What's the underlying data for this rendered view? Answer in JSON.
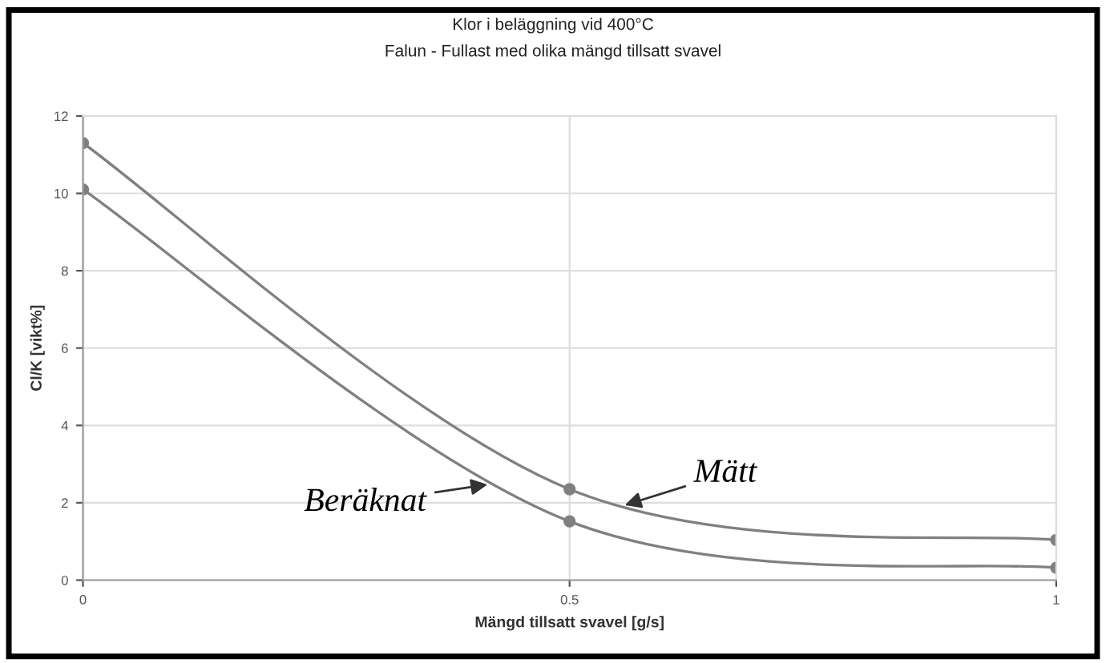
{
  "chart_data": {
    "type": "line",
    "title": "Klor i beläggning vid 400°C",
    "subtitle": "Falun - Fullast med olika mängd tillsatt svavel",
    "xlabel": "Mängd tillsatt svavel [g/s]",
    "ylabel": "Cl/K [vikt%]",
    "x": [
      0,
      0.5,
      1
    ],
    "series": [
      {
        "name": "Mätt",
        "color": "#808080",
        "values": [
          11.3,
          2.35,
          1.04
        ]
      },
      {
        "name": "Beräknat",
        "color": "#808080",
        "values": [
          10.1,
          1.52,
          0.32
        ]
      }
    ],
    "xlim": [
      0,
      1
    ],
    "xticks": [
      0,
      0.5,
      1
    ],
    "ylim": [
      0,
      12
    ],
    "yticks": [
      0,
      2,
      4,
      6,
      8,
      10,
      12
    ],
    "grid": true,
    "marker": "circle",
    "line_style": "solid"
  }
}
